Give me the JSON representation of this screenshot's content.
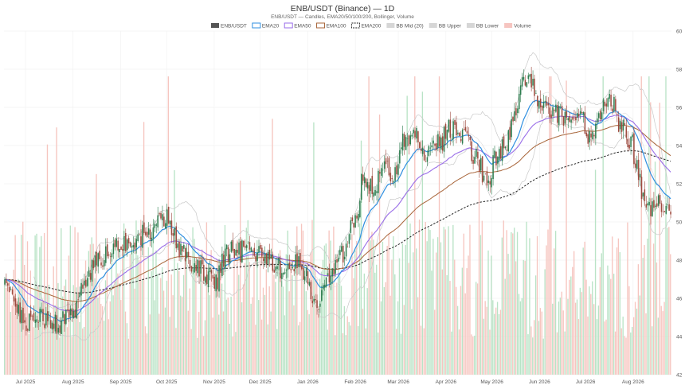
{
  "chart_data": {
    "type": "candlestick",
    "title": "ENB/USDT (Binance) — 1D",
    "subtitle": "ENB/USDT — Candles, EMA20/50/100/200, Bollinger, Volume",
    "ylim": [
      42,
      60
    ],
    "y_ticks": [
      42,
      44,
      46,
      48,
      50,
      52,
      54,
      56,
      58,
      60
    ],
    "y_axis_side": "right",
    "grid": true,
    "x_ticks": [
      "Jul 2025",
      "Aug 2025",
      "Sep 2025",
      "Oct 2025",
      "Nov 2025",
      "Dec 2025",
      "Jan 2026",
      "Feb 2026",
      "Mar 2026",
      "Apr 2026",
      "May 2026",
      "Jun 2026",
      "Jul 2026",
      "Aug 2026"
    ],
    "legend_position": "top-center",
    "legend": [
      {
        "label": "ENB/USDT",
        "kind": "candle",
        "color": "#555555"
      },
      {
        "label": "EMA20",
        "kind": "line",
        "color": "#2f8fe0"
      },
      {
        "label": "EMA50",
        "kind": "line",
        "color": "#9a6ee8"
      },
      {
        "label": "EMA100",
        "kind": "line",
        "color": "#a8653a"
      },
      {
        "label": "EMA200",
        "kind": "dashed",
        "color": "#222222"
      },
      {
        "label": "BB Mid (20)",
        "kind": "box",
        "color": "#cccccc"
      },
      {
        "label": "BB Upper",
        "kind": "box",
        "color": "#cccccc"
      },
      {
        "label": "BB Lower",
        "kind": "box",
        "color": "#cccccc"
      },
      {
        "label": "Volume",
        "kind": "box",
        "color": "#f4b6b0"
      }
    ],
    "colors": {
      "up": "#2e7d4f",
      "down": "#9e4a3e",
      "vol_up": "#b9e3c6",
      "vol_down": "#f6c5bf",
      "ema20": "#2f8fe0",
      "ema50": "#9a6ee8",
      "ema100": "#a8653a",
      "ema200": "#222222",
      "bb": "#c8c8c8"
    },
    "price_anchors": [
      [
        "2025-06-17",
        46.7
      ],
      [
        "2025-06-25",
        45.2
      ],
      [
        "2025-07-01",
        44.7
      ],
      [
        "2025-07-10",
        45.0
      ],
      [
        "2025-07-20",
        44.6
      ],
      [
        "2025-08-01",
        45.3
      ],
      [
        "2025-08-08",
        46.6
      ],
      [
        "2025-08-15",
        47.8
      ],
      [
        "2025-08-25",
        48.5
      ],
      [
        "2025-09-05",
        48.7
      ],
      [
        "2025-09-15",
        49.3
      ],
      [
        "2025-09-25",
        49.8
      ],
      [
        "2025-10-01",
        50.3
      ],
      [
        "2025-10-05",
        49.5
      ],
      [
        "2025-10-10",
        48.3
      ],
      [
        "2025-10-20",
        47.6
      ],
      [
        "2025-10-28",
        47.2
      ],
      [
        "2025-11-01",
        46.6
      ],
      [
        "2025-11-08",
        48.3
      ],
      [
        "2025-11-15",
        48.5
      ],
      [
        "2025-11-25",
        48.4
      ],
      [
        "2025-12-05",
        48.0
      ],
      [
        "2025-12-15",
        47.6
      ],
      [
        "2025-12-25",
        47.8
      ],
      [
        "2026-01-01",
        47.2
      ],
      [
        "2026-01-05",
        45.4
      ],
      [
        "2026-01-10",
        46.2
      ],
      [
        "2026-01-18",
        47.5
      ],
      [
        "2026-01-25",
        48.5
      ],
      [
        "2026-02-01",
        50.2
      ],
      [
        "2026-02-06",
        52.4
      ],
      [
        "2026-02-12",
        51.8
      ],
      [
        "2026-02-20",
        53.0
      ],
      [
        "2026-02-26",
        52.4
      ],
      [
        "2026-03-05",
        54.2
      ],
      [
        "2026-03-12",
        54.6
      ],
      [
        "2026-03-20",
        53.5
      ],
      [
        "2026-03-28",
        54.2
      ],
      [
        "2026-04-05",
        54.9
      ],
      [
        "2026-04-12",
        54.6
      ],
      [
        "2026-04-20",
        53.5
      ],
      [
        "2026-04-28",
        52.2
      ],
      [
        "2026-05-04",
        53.4
      ],
      [
        "2026-05-10",
        54.2
      ],
      [
        "2026-05-16",
        55.3
      ],
      [
        "2026-05-20",
        57.0
      ],
      [
        "2026-05-25",
        57.6
      ],
      [
        "2026-06-01",
        56.0
      ],
      [
        "2026-06-08",
        55.9
      ],
      [
        "2026-06-15",
        55.5
      ],
      [
        "2026-06-22",
        54.9
      ],
      [
        "2026-06-28",
        55.7
      ],
      [
        "2026-07-05",
        54.2
      ],
      [
        "2026-07-12",
        55.8
      ],
      [
        "2026-07-18",
        56.4
      ],
      [
        "2026-07-25",
        55.0
      ],
      [
        "2026-07-31",
        54.3
      ],
      [
        "2026-08-04",
        52.8
      ],
      [
        "2026-08-08",
        51.2
      ],
      [
        "2026-08-12",
        50.8
      ],
      [
        "2026-08-16",
        51.0
      ],
      [
        "2026-08-22",
        50.4
      ]
    ]
  }
}
